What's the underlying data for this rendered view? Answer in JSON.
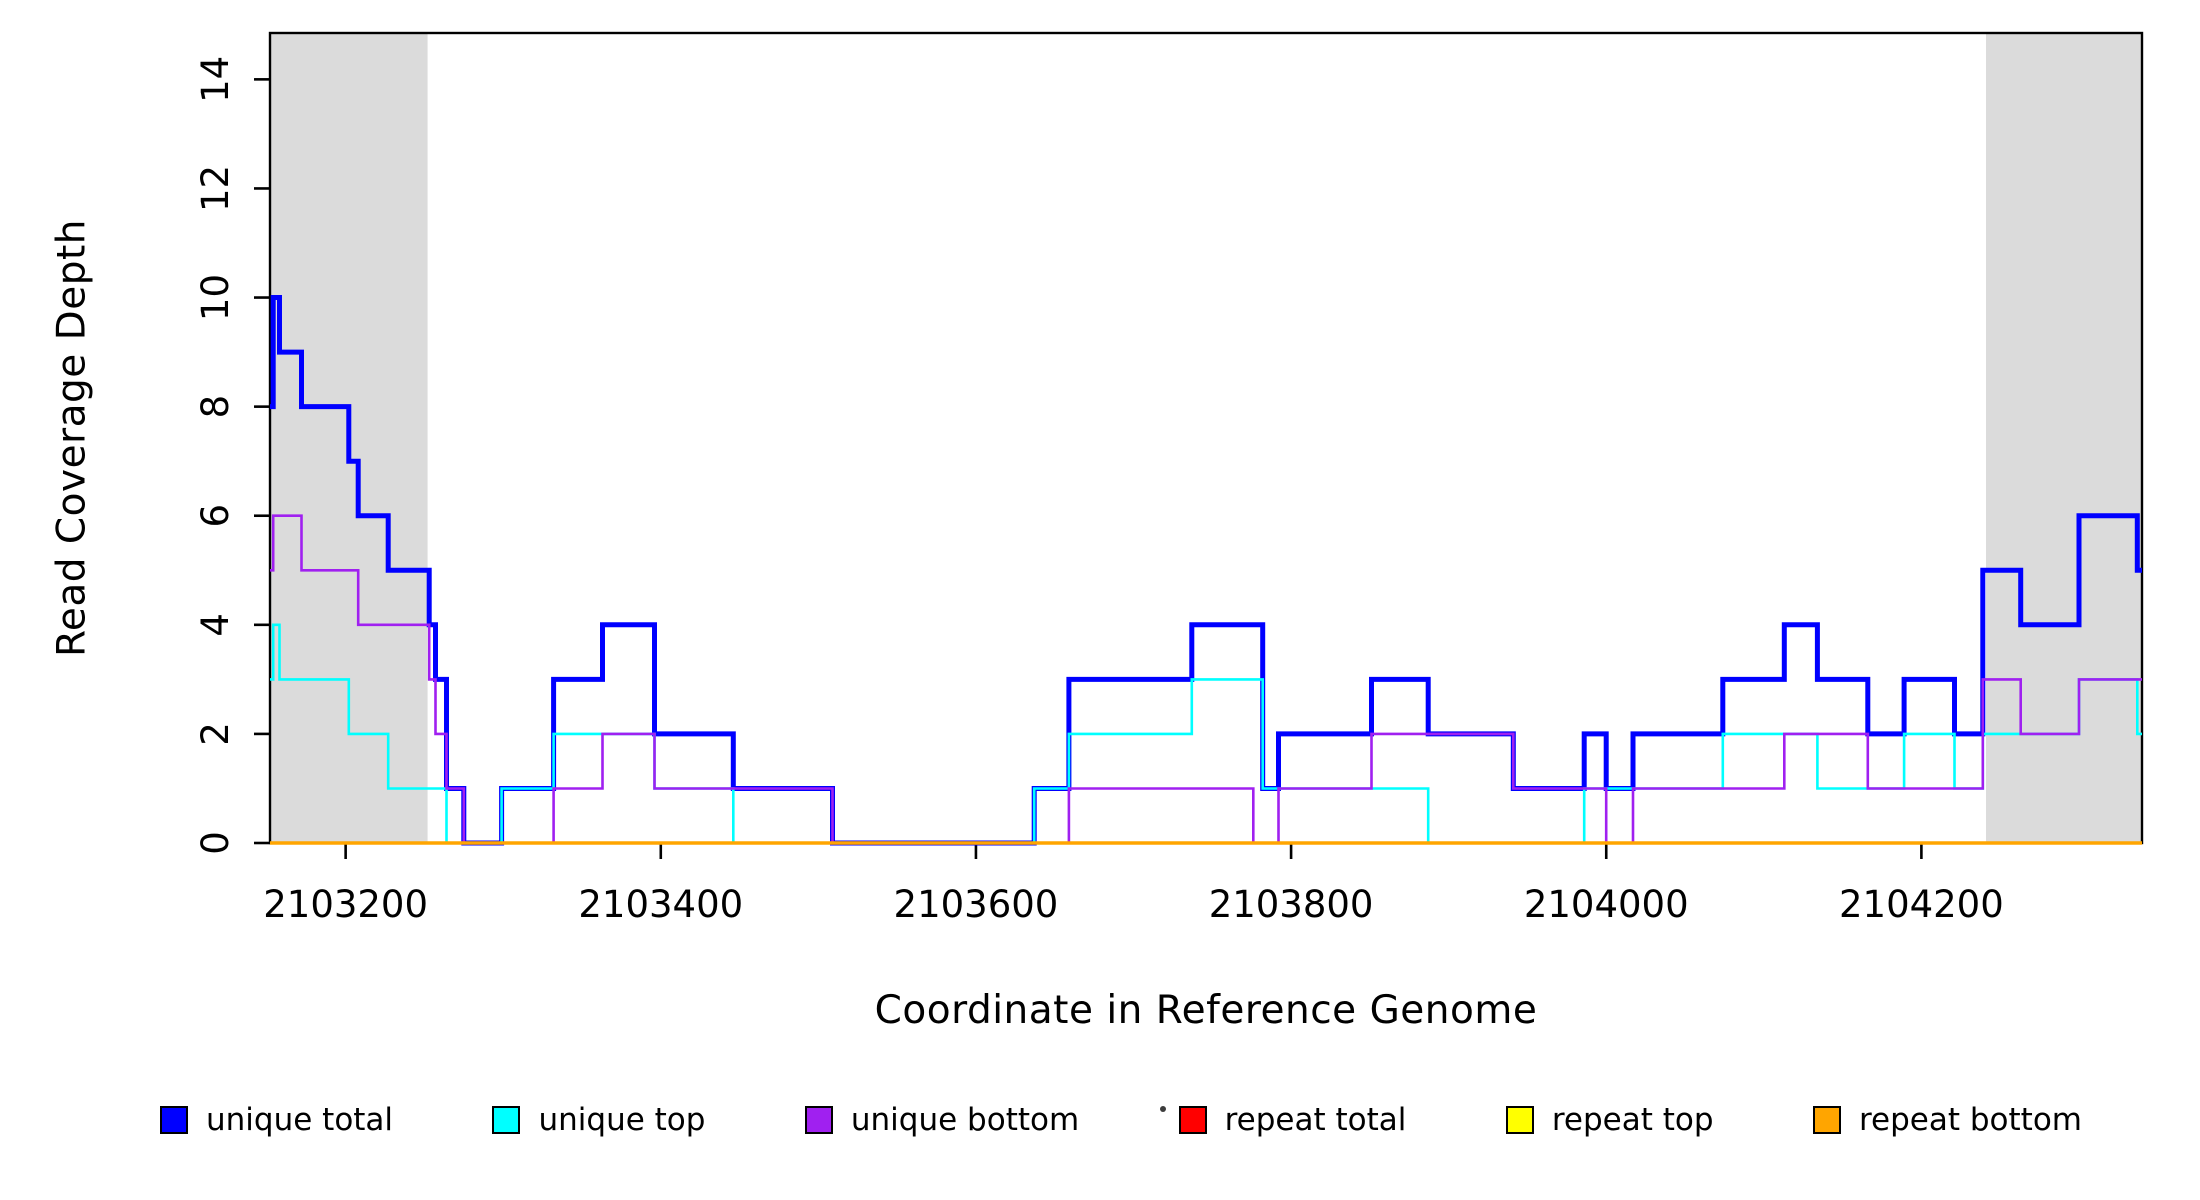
{
  "chart_data": {
    "type": "line",
    "subtype": "step-coverage",
    "title": "",
    "xlabel": "Coordinate in Reference Genome",
    "ylabel": "Read Coverage Depth",
    "xlim": [
      2103152,
      2104340
    ],
    "ylim": [
      0,
      14.85
    ],
    "x_ticks": [
      2103200,
      2103400,
      2103600,
      2103800,
      2104000,
      2104200
    ],
    "y_ticks": [
      0,
      2,
      4,
      6,
      8,
      10,
      12,
      14
    ],
    "grid": false,
    "box_color": "#000000",
    "shaded_regions": [
      {
        "x0": 2103152,
        "x1": 2103252,
        "color": "#DBDBDB"
      },
      {
        "x0": 2104241,
        "x1": 2104340,
        "color": "#DBDBDB"
      }
    ],
    "series": [
      {
        "name": "unique total",
        "color": "#0000FF",
        "line_width": 5,
        "steps": [
          [
            2103152,
            8
          ],
          [
            2103154,
            10
          ],
          [
            2103158,
            9
          ],
          [
            2103172,
            8
          ],
          [
            2103202,
            7
          ],
          [
            2103208,
            6
          ],
          [
            2103227,
            5
          ],
          [
            2103253,
            4
          ],
          [
            2103257,
            3
          ],
          [
            2103264,
            1
          ],
          [
            2103275,
            0
          ],
          [
            2103299,
            1
          ],
          [
            2103332,
            3
          ],
          [
            2103363,
            4
          ],
          [
            2103396,
            2
          ],
          [
            2103446,
            1
          ],
          [
            2103509,
            0
          ],
          [
            2103637,
            1
          ],
          [
            2103659,
            3
          ],
          [
            2103737,
            4
          ],
          [
            2103782,
            1
          ],
          [
            2103792,
            2
          ],
          [
            2103851,
            3
          ],
          [
            2103887,
            2
          ],
          [
            2103941,
            1
          ],
          [
            2103986,
            2
          ],
          [
            2104000,
            1
          ],
          [
            2104017,
            2
          ],
          [
            2104074,
            3
          ],
          [
            2104113,
            4
          ],
          [
            2104134,
            3
          ],
          [
            2104166,
            2
          ],
          [
            2104189,
            3
          ],
          [
            2104221,
            2
          ],
          [
            2104239,
            5
          ],
          [
            2104263,
            4
          ],
          [
            2104300,
            6
          ],
          [
            2104337,
            5
          ]
        ]
      },
      {
        "name": "unique top",
        "color": "#00FFFF",
        "line_width": 2.6,
        "steps": [
          [
            2103152,
            3
          ],
          [
            2103154,
            4
          ],
          [
            2103158,
            3
          ],
          [
            2103202,
            2
          ],
          [
            2103227,
            1
          ],
          [
            2103264,
            0
          ],
          [
            2103299,
            1
          ],
          [
            2103332,
            2
          ],
          [
            2103396,
            1
          ],
          [
            2103446,
            0
          ],
          [
            2103637,
            1
          ],
          [
            2103659,
            2
          ],
          [
            2103737,
            3
          ],
          [
            2103782,
            1
          ],
          [
            2103887,
            0
          ],
          [
            2103986,
            1
          ],
          [
            2104074,
            2
          ],
          [
            2104134,
            1
          ],
          [
            2104189,
            2
          ],
          [
            2104221,
            1
          ],
          [
            2104239,
            2
          ],
          [
            2104300,
            3
          ],
          [
            2104337,
            2
          ]
        ]
      },
      {
        "name": "unique bottom",
        "color": "#A020F0",
        "line_width": 2.6,
        "steps": [
          [
            2103152,
            5
          ],
          [
            2103154,
            6
          ],
          [
            2103172,
            5
          ],
          [
            2103208,
            4
          ],
          [
            2103253,
            3
          ],
          [
            2103257,
            2
          ],
          [
            2103264,
            1
          ],
          [
            2103275,
            0
          ],
          [
            2103332,
            1
          ],
          [
            2103363,
            2
          ],
          [
            2103396,
            1
          ],
          [
            2103509,
            0
          ],
          [
            2103659,
            1
          ],
          [
            2103776,
            0
          ],
          [
            2103792,
            1
          ],
          [
            2103851,
            2
          ],
          [
            2103941,
            1
          ],
          [
            2104000,
            0
          ],
          [
            2104017,
            1
          ],
          [
            2104113,
            2
          ],
          [
            2104166,
            1
          ],
          [
            2104239,
            3
          ],
          [
            2104263,
            2
          ],
          [
            2104300,
            3
          ]
        ]
      },
      {
        "name": "repeat total",
        "color": "#FF0000",
        "line_width": 2.6,
        "steps": [
          [
            2103152,
            0
          ]
        ]
      },
      {
        "name": "repeat top",
        "color": "#FFFF00",
        "line_width": 2.6,
        "steps": [
          [
            2103152,
            0
          ]
        ]
      },
      {
        "name": "repeat bottom",
        "color": "#FFA500",
        "line_width": 3.4,
        "steps": [
          [
            2103152,
            0
          ]
        ]
      }
    ],
    "legend": {
      "position": "bottom",
      "items": [
        {
          "label": "unique total",
          "color": "#0000FF"
        },
        {
          "label": "unique top",
          "color": "#00FFFF"
        },
        {
          "label": "unique bottom",
          "color": "#A020F0"
        },
        {
          "label": "repeat total",
          "color": "#FF0000"
        },
        {
          "label": "repeat top",
          "color": "#FFFF00"
        },
        {
          "label": "repeat bottom",
          "color": "#FFA500"
        }
      ]
    }
  }
}
